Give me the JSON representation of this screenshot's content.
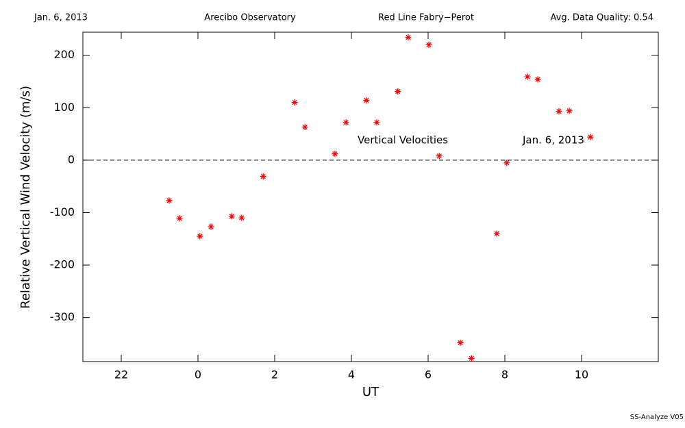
{
  "chart_data": {
    "type": "scatter",
    "header": [
      "Jan. 6, 2013",
      "Arecibo Observatory",
      "Red Line Fabry−Perot",
      "Avg. Data Quality: 0.54"
    ],
    "xlabel": "UT",
    "ylabel": "Relative Vertical Wind Velocity (m/s)",
    "annotations": [
      "Vertical Velocities",
      "Jan. 6, 2013"
    ],
    "footer": "SS-Analyze V05",
    "color": "#ff0000",
    "xlim": [
      -3,
      12
    ],
    "ylim": [
      -384,
      244
    ],
    "xticks": [
      {
        "value": -2,
        "label": "22"
      },
      0,
      2,
      4,
      6,
      8,
      10
    ],
    "yticks": [
      -300,
      -200,
      -100,
      0,
      100,
      200
    ],
    "x": [
      -0.75,
      -0.48,
      0.05,
      0.34,
      0.88,
      1.14,
      1.7,
      2.52,
      2.79,
      3.57,
      3.86,
      4.39,
      4.66,
      5.21,
      5.48,
      6.02,
      6.29,
      6.84,
      7.13,
      7.79,
      8.05,
      8.59,
      8.86,
      9.41,
      9.68,
      10.23
    ],
    "values": [
      -77,
      -111,
      -145,
      -127,
      -107,
      -110,
      -31,
      110,
      63,
      12,
      72,
      114,
      72,
      131,
      234,
      220,
      8,
      -348,
      -378,
      -140,
      -5,
      159,
      154,
      93,
      94,
      44
    ]
  }
}
